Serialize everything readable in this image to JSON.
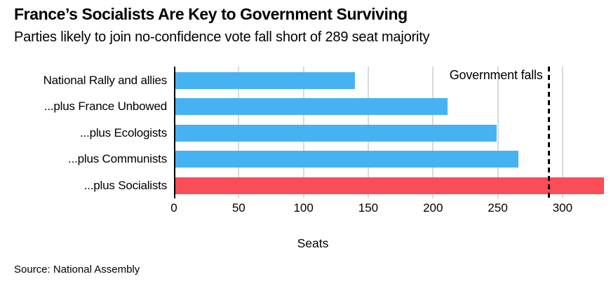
{
  "header": {
    "title": "France’s Socialists Are Key to Government Surviving",
    "subtitle": "Parties likely to join no-confidence vote fall short of 289 seat majority"
  },
  "chart_data": {
    "type": "bar",
    "orientation": "horizontal",
    "title": "France’s Socialists Are Key to Government Surviving",
    "subtitle": "Parties likely to join no-confidence vote fall short of 289 seat majority",
    "categories": [
      "National Rally and allies",
      "...plus France Unbowed",
      "...plus Ecologists",
      "...plus Communists",
      "...plus Socialists"
    ],
    "values": [
      140,
      211,
      249,
      266,
      332
    ],
    "bar_colors": [
      "#47b2f2",
      "#47b2f2",
      "#47b2f2",
      "#47b2f2",
      "#fa4d57"
    ],
    "xlabel": "Seats",
    "ylabel": "",
    "x_ticks": [
      0,
      50,
      100,
      150,
      200,
      250,
      300
    ],
    "xlim": [
      0,
      332
    ],
    "grid": true,
    "legend": "none",
    "reference_line": {
      "value": 289,
      "label": "Government falls",
      "style": "dashed",
      "color": "#000000"
    }
  },
  "colors": {
    "bar_blue": "#47b2f2",
    "bar_red": "#fa4d57",
    "gridline": "#d9d9d9",
    "axis": "#000000",
    "text": "#000000",
    "background": "#ffffff"
  },
  "footer": {
    "source": "Source: National Assembly"
  }
}
